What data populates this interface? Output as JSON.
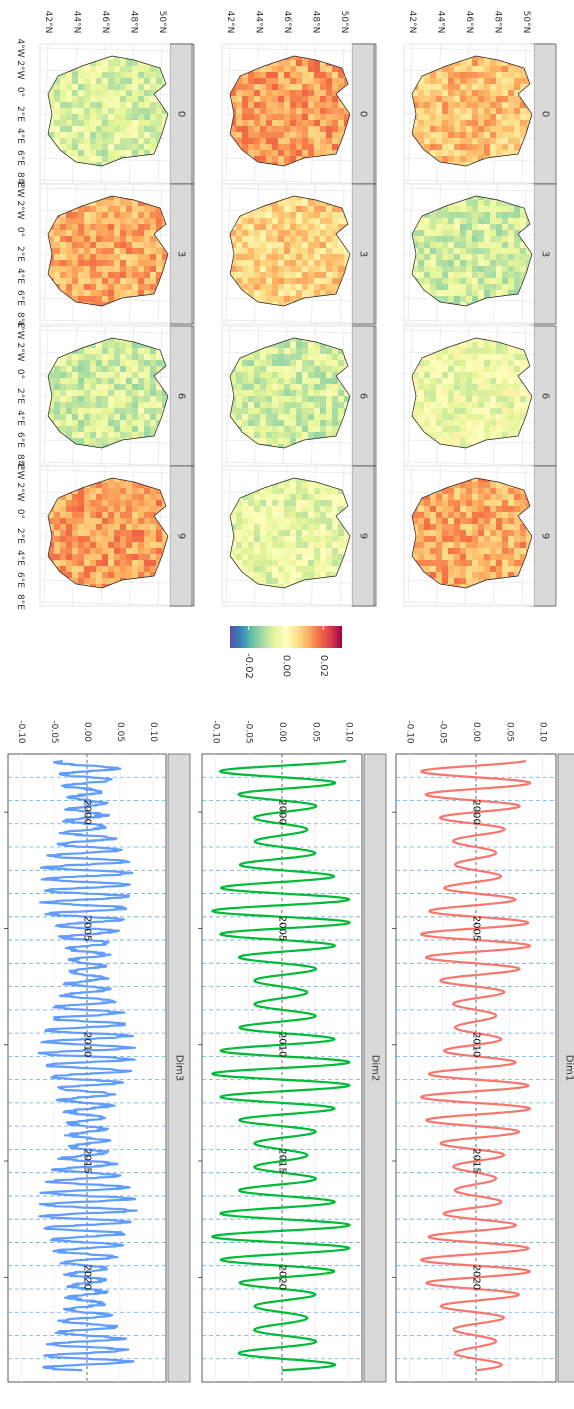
{
  "maps": {
    "rows": [
      "Dim1",
      "Dim2",
      "Dim3"
    ],
    "lags": [
      "0",
      "3",
      "6",
      "9"
    ],
    "lat_ticks": [
      "42°N",
      "44°N",
      "46°N",
      "48°N",
      "50°N"
    ],
    "lon_ticks": [
      "4°W",
      "2°W",
      "0°",
      "2°E",
      "4°E",
      "6°E",
      "8°E"
    ],
    "legend_ticks": [
      "-0.02",
      "0.00",
      "0.02"
    ],
    "legend_values": [
      -0.02,
      0.0,
      0.02
    ],
    "legend_range": [
      -0.03,
      0.03
    ],
    "palette": [
      "#5e4fa2",
      "#3288bd",
      "#66c2a5",
      "#abdda4",
      "#e6f598",
      "#ffffbf",
      "#fee08b",
      "#fdae61",
      "#f46d43",
      "#d53e4f",
      "#9e0142"
    ],
    "panel_tone": {
      "Dim1": [
        0.45,
        -0.35,
        -0.15,
        0.55
      ],
      "Dim2": [
        0.6,
        0.35,
        -0.35,
        -0.2
      ],
      "Dim3": [
        -0.3,
        0.55,
        -0.35,
        0.6
      ]
    }
  },
  "chart_data": {
    "type": "line",
    "facet": "vertical strips (plot rotated 90°)",
    "x_range_years": [
      1997.5,
      2024.5
    ],
    "y_range": [
      -0.12,
      0.12
    ],
    "x_ticks": [
      "2000",
      "2005",
      "2010",
      "2015",
      "2020"
    ],
    "y_ticks": [
      "-0.10",
      "-0.05",
      "0.00",
      "0.05",
      "0.10"
    ],
    "x_year_ticks": [
      2000,
      2005,
      2010,
      2015,
      2020
    ],
    "y_tick_values": [
      -0.1,
      -0.05,
      0.0,
      0.05,
      0.1
    ],
    "vertical_dashed_markers": "yearly, every year",
    "series": [
      {
        "name": "Dim1",
        "color": "#f8766d",
        "amplitude": 0.075,
        "cycles_per_year": 1
      },
      {
        "name": "Dim2",
        "color": "#00ba38",
        "amplitude": 0.095,
        "cycles_per_year": 1
      },
      {
        "name": "Dim3",
        "color": "#619cff",
        "amplitude": 0.06,
        "cycles_per_year": 2
      }
    ]
  }
}
